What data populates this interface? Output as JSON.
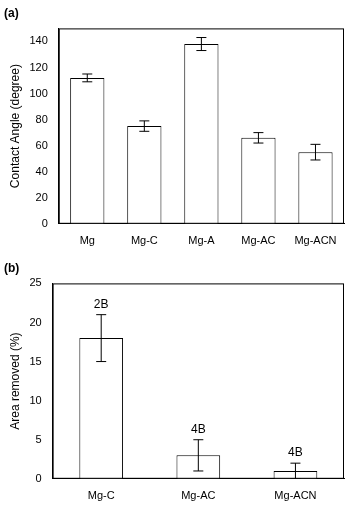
{
  "chart_data": [
    {
      "type": "bar",
      "title": "(a)",
      "categories": [
        "Mg",
        "Mg-C",
        "Mg-A",
        "Mg-AC",
        "Mg-ACN"
      ],
      "values": [
        112,
        75,
        138,
        66,
        55
      ],
      "errors": [
        3,
        4,
        5,
        4,
        6
      ],
      "color": "#ffffff",
      "y_label": "Contact Angle (degree)",
      "ylim": [
        0,
        150
      ],
      "yticks": [
        0,
        20,
        40,
        60,
        80,
        100,
        120,
        140
      ],
      "grid": false
    },
    {
      "type": "bar",
      "title": "(b)",
      "categories": [
        "Mg-C",
        "Mg-AC",
        "Mg-ACN"
      ],
      "values": [
        18,
        3,
        1
      ],
      "errors": [
        3,
        2,
        1
      ],
      "annotations": [
        "2B",
        "4B",
        "4B"
      ],
      "color": "#ffffff",
      "y_label": "Area removed (%)",
      "ylim": [
        0,
        25
      ],
      "yticks": [
        0,
        5,
        10,
        15,
        20,
        25
      ],
      "grid": false
    }
  ]
}
